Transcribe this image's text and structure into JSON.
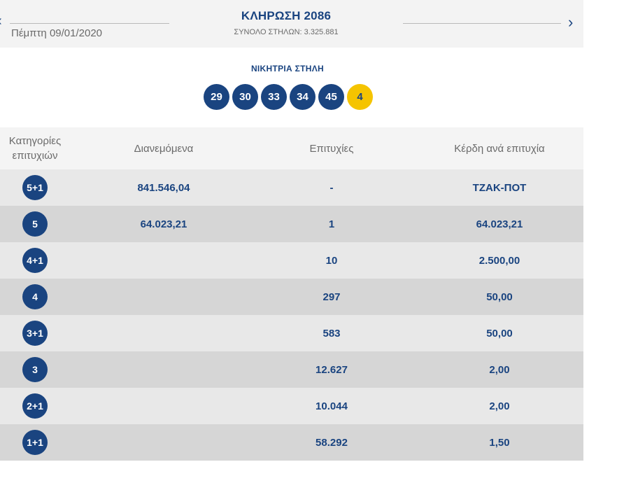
{
  "header": {
    "draw_title": "ΚΛΗΡΩΣΗ 2086",
    "total_columns": "ΣΥΝΟΛΟ ΣΤΗΛΩΝ: 3.325.881",
    "draw_date": "Πέμπτη 09/01/2020",
    "prev_icon": "‹",
    "next_icon": "›"
  },
  "winning": {
    "title": "ΝΙΚΗΤΡΙΑ ΣΤΗΛΗ",
    "numbers": [
      "29",
      "30",
      "33",
      "34",
      "45"
    ],
    "joker": "4",
    "colors": {
      "ball": "#1a4480",
      "joker": "#f5c400"
    }
  },
  "table": {
    "headers": {
      "category_line1": "Κατηγορίες",
      "category_line2": "επιτυχιών",
      "distributed": "Διανεμόμενα",
      "winners": "Επιτυχίες",
      "prize": "Κέρδη ανά επιτυχία"
    },
    "rows": [
      {
        "category": "5+1",
        "distributed": "841.546,04",
        "winners": "-",
        "prize": "ΤΖΑΚ-ΠΟΤ"
      },
      {
        "category": "5",
        "distributed": "64.023,21",
        "winners": "1",
        "prize": "64.023,21"
      },
      {
        "category": "4+1",
        "distributed": "",
        "winners": "10",
        "prize": "2.500,00"
      },
      {
        "category": "4",
        "distributed": "",
        "winners": "297",
        "prize": "50,00"
      },
      {
        "category": "3+1",
        "distributed": "",
        "winners": "583",
        "prize": "50,00"
      },
      {
        "category": "3",
        "distributed": "",
        "winners": "12.627",
        "prize": "2,00"
      },
      {
        "category": "2+1",
        "distributed": "",
        "winners": "10.044",
        "prize": "2,00"
      },
      {
        "category": "1+1",
        "distributed": "",
        "winners": "58.292",
        "prize": "1,50"
      }
    ]
  }
}
